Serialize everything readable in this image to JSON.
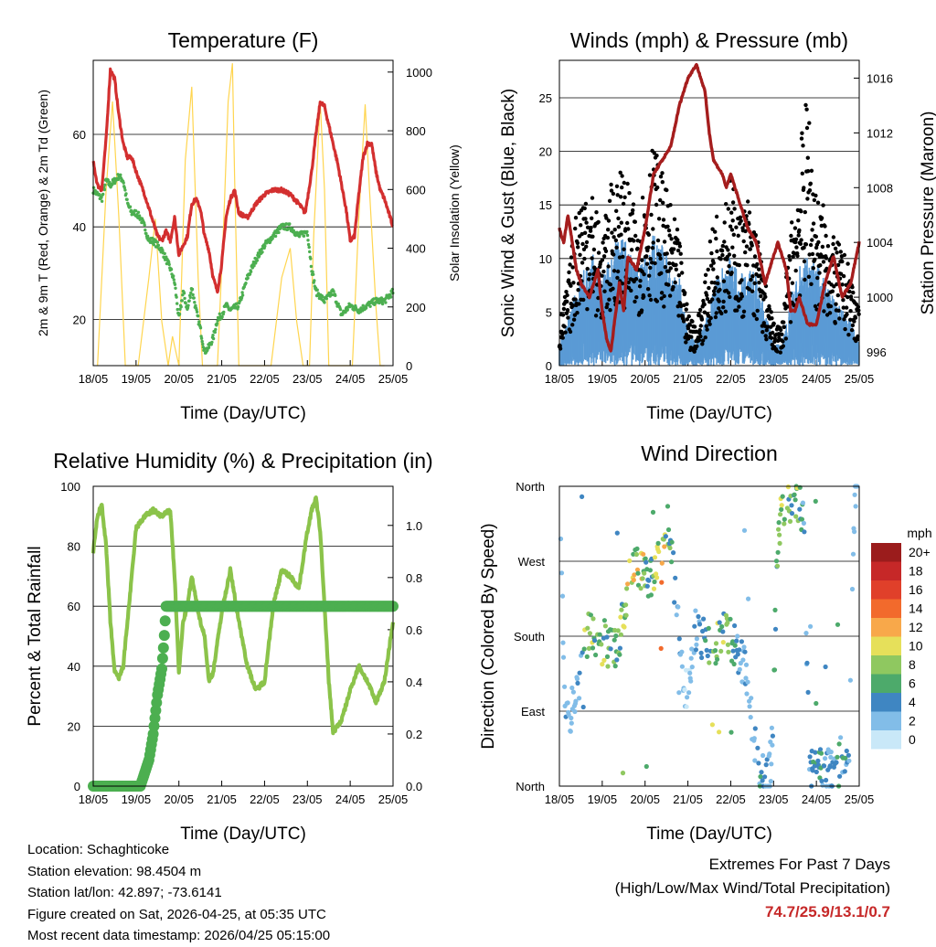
{
  "chart_data": [
    {
      "type": "line",
      "title": "Temperature (F)",
      "xlabel": "Time (Day/UTC)",
      "ylabel": "2m & 9m T (Red, Orange) & 2m Td (Green)",
      "y2label": "Solar Insolation (Yellow)",
      "x_ticks": [
        "18/05",
        "19/05",
        "20/05",
        "21/05",
        "22/05",
        "23/05",
        "24/05",
        "25/05"
      ],
      "xlim": [
        0,
        7
      ],
      "ylim": [
        10,
        76
      ],
      "y_ticks": [
        20,
        40,
        60
      ],
      "y2lim": [
        0,
        1040
      ],
      "y2_ticks": [
        0,
        200,
        400,
        600,
        800,
        1000
      ],
      "series": [
        {
          "name": "2m T",
          "color": "#d32f2f",
          "x": [
            0,
            0.1,
            0.2,
            0.3,
            0.4,
            0.5,
            0.6,
            0.7,
            0.8,
            0.9,
            1.0,
            1.2,
            1.4,
            1.5,
            1.6,
            1.7,
            1.8,
            1.9,
            2.0,
            2.1,
            2.2,
            2.3,
            2.4,
            2.5,
            2.6,
            2.7,
            2.8,
            2.9,
            3.0,
            3.1,
            3.2,
            3.3,
            3.4,
            3.6,
            3.8,
            4.0,
            4.2,
            4.4,
            4.6,
            4.8,
            4.95,
            5.1,
            5.2,
            5.3,
            5.4,
            5.5,
            5.6,
            5.7,
            5.8,
            5.9,
            6.0,
            6.1,
            6.2,
            6.3,
            6.4,
            6.5,
            6.6,
            6.7,
            6.8,
            6.9,
            7.0
          ],
          "values": [
            54,
            49,
            48,
            59,
            74,
            72,
            64,
            58,
            55,
            55,
            52,
            47,
            41,
            38,
            37,
            39,
            37,
            42,
            34,
            36,
            38,
            45,
            46,
            44,
            38,
            35,
            29,
            26,
            32,
            42,
            46,
            48,
            43,
            42,
            45,
            47,
            48,
            48,
            47,
            45,
            43,
            52,
            60,
            67,
            66,
            62,
            58,
            54,
            49,
            44,
            37,
            38,
            47,
            55,
            58,
            58,
            52,
            48,
            46,
            43,
            40
          ]
        },
        {
          "name": "2m Td",
          "color": "#4caf50",
          "x": [
            0,
            0.1,
            0.2,
            0.3,
            0.4,
            0.5,
            0.6,
            0.7,
            0.8,
            0.9,
            1.0,
            1.1,
            1.2,
            1.3,
            1.4,
            1.5,
            1.6,
            1.7,
            1.8,
            1.9,
            2.0,
            2.1,
            2.2,
            2.3,
            2.4,
            2.5,
            2.6,
            2.7,
            2.8,
            2.9,
            3.0,
            3.1,
            3.2,
            3.4,
            3.6,
            3.8,
            4.0,
            4.2,
            4.4,
            4.6,
            4.8,
            5.0,
            5.1,
            5.2,
            5.3,
            5.4,
            5.6,
            5.8,
            6.0,
            6.2,
            6.4,
            6.6,
            6.8,
            7.0
          ],
          "values": [
            48,
            47,
            46,
            50,
            49,
            50,
            51,
            50,
            45,
            43,
            43,
            42,
            40,
            37,
            37,
            36,
            35,
            33,
            31,
            28,
            20,
            26,
            22,
            27,
            22,
            18,
            13,
            14,
            16,
            20,
            21,
            23,
            22,
            23,
            29,
            33,
            36,
            38,
            40,
            40,
            38,
            39,
            31,
            26,
            25,
            24,
            26,
            21,
            23,
            22,
            23,
            24,
            24,
            26
          ]
        },
        {
          "name": "Solar Insolation",
          "color": "#ffd54f",
          "axis": "y2",
          "x": [
            0.1,
            0.3,
            0.45,
            0.6,
            0.75,
            1.05,
            1.3,
            1.45,
            1.6,
            1.75,
            1.85,
            2.0,
            2.15,
            2.3,
            2.45,
            2.55,
            2.7,
            2.9,
            3.05,
            3.15,
            3.25,
            3.3,
            3.4,
            3.55,
            4.15,
            4.4,
            4.6,
            4.75,
            4.9,
            5.05,
            5.15,
            5.3,
            5.4,
            5.5,
            5.7,
            5.9,
            6.05,
            6.2,
            6.35,
            6.45,
            6.6,
            6.7,
            6.8
          ],
          "values": [
            0,
            600,
            900,
            500,
            0,
            0,
            300,
            500,
            150,
            0,
            100,
            0,
            700,
            950,
            300,
            0,
            0,
            0,
            500,
            900,
            1030,
            650,
            0,
            0,
            0,
            300,
            400,
            150,
            0,
            0,
            450,
            900,
            600,
            0,
            0,
            0,
            0,
            500,
            890,
            600,
            200,
            0,
            0
          ]
        }
      ]
    },
    {
      "type": "scatter",
      "title": "Winds (mph) & Pressure (mb)",
      "xlabel": "Time (Day/UTC)",
      "ylabel": "Sonic Wind & Gust (Blue, Black)",
      "y2label": "Station Pressure (Maroon)",
      "x_ticks": [
        "18/05",
        "19/05",
        "20/05",
        "21/05",
        "22/05",
        "23/05",
        "24/05",
        "25/05"
      ],
      "xlim": [
        0,
        7
      ],
      "ylim": [
        0,
        28.5
      ],
      "y_ticks": [
        0,
        5,
        10,
        15,
        20,
        25
      ],
      "y2lim": [
        995.0,
        1017.3
      ],
      "y2_ticks": [
        996,
        1000,
        1004,
        1008,
        1012,
        1016
      ],
      "series": [
        {
          "name": "Wind (envelope)",
          "color": "#5b9bd5",
          "type": "area",
          "x": [
            0,
            0.2,
            0.4,
            0.6,
            0.8,
            1.0,
            1.2,
            1.4,
            1.6,
            1.8,
            2.0,
            2.2,
            2.4,
            2.6,
            2.8,
            3.0,
            3.2,
            3.4,
            3.6,
            3.8,
            4.0,
            4.2,
            4.4,
            4.6,
            4.8,
            5.0,
            5.2,
            5.4,
            5.6,
            5.8,
            6.0,
            6.2,
            6.4,
            6.6,
            6.8,
            7.0
          ],
          "values": [
            2,
            4,
            7,
            9,
            10,
            8,
            10,
            12,
            11,
            9,
            10,
            12,
            11,
            9,
            8,
            3,
            2,
            4,
            7,
            9,
            10,
            8,
            9,
            8,
            5,
            2,
            2,
            6,
            9,
            10,
            9,
            8,
            6,
            5,
            4,
            2
          ]
        },
        {
          "name": "Gust (envelope)",
          "color": "#000000",
          "type": "points",
          "x": [
            0,
            0.2,
            0.4,
            0.6,
            0.8,
            1.0,
            1.2,
            1.4,
            1.6,
            1.8,
            2.0,
            2.2,
            2.4,
            2.6,
            2.8,
            3.0,
            3.2,
            3.4,
            3.6,
            3.8,
            4.0,
            4.2,
            4.4,
            4.6,
            4.8,
            5.0,
            5.2,
            5.4,
            5.6,
            5.8,
            6.0,
            6.2,
            6.4,
            6.6,
            6.8,
            7.0
          ],
          "values": [
            4,
            8,
            15,
            18,
            16,
            12,
            17,
            19,
            17,
            14,
            18,
            21,
            18,
            15,
            12,
            5,
            4,
            8,
            14,
            16,
            18,
            14,
            16,
            13,
            8,
            4,
            4,
            13,
            20,
            26,
            16,
            15,
            12,
            11,
            9,
            5
          ]
        },
        {
          "name": "Station Pressure",
          "color": "#a51d1d",
          "axis": "y2",
          "x": [
            0,
            0.1,
            0.2,
            0.3,
            0.4,
            0.5,
            0.7,
            0.9,
            1.0,
            1.1,
            1.2,
            1.4,
            1.5,
            1.6,
            1.8,
            2.0,
            2.2,
            2.4,
            2.6,
            2.8,
            3.0,
            3.2,
            3.4,
            3.5,
            3.6,
            3.8,
            3.9,
            4.0,
            4.2,
            4.4,
            4.6,
            4.8,
            5.0,
            5.1,
            5.2,
            5.3,
            5.4,
            5.5,
            5.6,
            5.8,
            6.0,
            6.2,
            6.4,
            6.6,
            6.8,
            7.0
          ],
          "values": [
            1005,
            1004,
            1006,
            1004,
            1002,
            1001,
            1000,
            1002,
            999,
            997,
            996,
            1001,
            999,
            1003,
            1002,
            1005,
            1009,
            1010,
            1011,
            1014,
            1016,
            1017,
            1015,
            1012,
            1010,
            1009,
            1008,
            1009,
            1007,
            1005,
            1004,
            1001,
            1003,
            1004,
            1003,
            1002,
            999,
            999,
            1000,
            998,
            998,
            1001,
            1003,
            1000,
            1001,
            1004
          ]
        }
      ]
    },
    {
      "type": "line",
      "title": "Relative Humidity (%) & Precipitation (in)",
      "xlabel": "Time (Day/UTC)",
      "ylabel": "Percent & Total Rainfall",
      "x_ticks": [
        "18/05",
        "19/05",
        "20/05",
        "21/05",
        "22/05",
        "23/05",
        "24/05",
        "25/05"
      ],
      "xlim": [
        0,
        7
      ],
      "ylim": [
        0,
        100
      ],
      "y_ticks": [
        0,
        20,
        40,
        60,
        80,
        100
      ],
      "y2lim": [
        0,
        1.15
      ],
      "y2_ticks": [
        "0.0",
        "0.2",
        "0.4",
        "0.6",
        "0.8",
        "1.0"
      ],
      "series": [
        {
          "name": "Relative Humidity",
          "color": "#8bc34a",
          "x": [
            0,
            0.1,
            0.2,
            0.3,
            0.4,
            0.5,
            0.6,
            0.7,
            0.8,
            0.9,
            1.0,
            1.2,
            1.4,
            1.6,
            1.8,
            1.9,
            2.0,
            2.1,
            2.2,
            2.3,
            2.4,
            2.5,
            2.6,
            2.7,
            2.8,
            3.0,
            3.2,
            3.4,
            3.6,
            3.8,
            4.0,
            4.2,
            4.4,
            4.6,
            4.8,
            5.0,
            5.1,
            5.2,
            5.3,
            5.4,
            5.5,
            5.6,
            5.8,
            6.0,
            6.2,
            6.4,
            6.6,
            6.8,
            7.0
          ],
          "values": [
            78,
            90,
            94,
            80,
            55,
            38,
            36,
            40,
            55,
            70,
            86,
            90,
            92,
            90,
            92,
            70,
            38,
            55,
            60,
            70,
            62,
            55,
            50,
            35,
            38,
            58,
            72,
            55,
            40,
            32,
            35,
            60,
            72,
            70,
            66,
            85,
            92,
            96,
            85,
            60,
            35,
            18,
            22,
            32,
            40,
            35,
            28,
            35,
            55
          ]
        },
        {
          "name": "Total Precipitation",
          "color": "#4caf50",
          "axis": "y2",
          "x": [
            0,
            0.5,
            1.0,
            1.1,
            1.2,
            1.3,
            1.4,
            1.5,
            1.6,
            1.65,
            1.7,
            2.0,
            3.0,
            4.0,
            5.0,
            6.0,
            7.0
          ],
          "values": [
            0,
            0,
            0,
            0,
            0.05,
            0.1,
            0.2,
            0.35,
            0.45,
            0.55,
            0.69,
            0.69,
            0.69,
            0.69,
            0.69,
            0.69,
            0.69
          ]
        }
      ]
    },
    {
      "type": "scatter",
      "title": "Wind Direction",
      "xlabel": "Time (Day/UTC)",
      "ylabel": "Direction (Colored By Speed)",
      "x_ticks": [
        "18/05",
        "19/05",
        "20/05",
        "21/05",
        "22/05",
        "23/05",
        "24/05",
        "25/05"
      ],
      "xlim": [
        0,
        7
      ],
      "ylim": [
        0,
        360
      ],
      "y_tick_labels": [
        "North",
        "East",
        "South",
        "West",
        "North"
      ],
      "y_ticks": [
        0,
        90,
        180,
        270,
        360
      ],
      "legend_title": "mph",
      "legend_labels": [
        "20+",
        "18",
        "16",
        "14",
        "12",
        "10",
        "8",
        "6",
        "4",
        "2",
        "0"
      ],
      "legend_colors": [
        "#9b1c1c",
        "#c62828",
        "#e0402a",
        "#f26a2c",
        "#f8a84a",
        "#e6e05a",
        "#8fc860",
        "#4daa6b",
        "#3f86c2",
        "#82bde8",
        "#c9e8f8"
      ],
      "series": [
        {
          "name": "direction (deg)",
          "x": [
            0.0,
            0.15,
            0.3,
            0.45,
            0.6,
            0.75,
            0.9,
            1.05,
            1.2,
            1.35,
            1.5,
            1.65,
            1.8,
            1.95,
            2.1,
            2.25,
            2.4,
            2.55,
            2.7,
            2.85,
            3.0,
            3.15,
            3.3,
            3.45,
            3.6,
            3.75,
            3.9,
            4.05,
            4.2,
            4.35,
            4.5,
            4.65,
            4.8,
            4.95,
            5.1,
            5.25,
            5.4,
            5.55,
            5.7,
            5.85,
            6.0,
            6.15,
            6.3,
            6.45,
            6.6,
            6.75,
            6.9
          ],
          "values": [
            350,
            70,
            95,
            130,
            175,
            190,
            165,
            175,
            160,
            175,
            200,
            265,
            270,
            260,
            240,
            265,
            270,
            320,
            230,
            150,
            100,
            190,
            180,
            170,
            165,
            185,
            180,
            175,
            160,
            140,
            80,
            20,
            5,
            30,
            300,
            340,
            330,
            350,
            320,
            20,
            15,
            25,
            20,
            15,
            30,
            25,
            350
          ],
          "speeds": [
            1,
            3,
            2,
            3,
            8,
            10,
            7,
            9,
            6,
            8,
            9,
            12,
            11,
            10,
            5,
            11,
            13,
            7,
            5,
            2,
            1,
            4,
            5,
            6,
            8,
            10,
            8,
            7,
            4,
            3,
            2,
            5,
            4,
            2,
            9,
            10,
            8,
            9,
            4,
            3,
            6,
            5,
            4,
            6,
            5,
            4,
            2
          ]
        }
      ]
    }
  ],
  "footer": {
    "location": "Location: Schaghticoke",
    "elevation": "Station elevation: 98.4504 m",
    "latlon": "Station lat/lon: 42.897; -73.6141",
    "created": "Figure created on Sat, 2026-04-25, at 05:35 UTC",
    "recent": "Most recent data timestamp: 2026/04/25 05:15:00",
    "extremes_title": "Extremes For Past 7 Days",
    "extremes_sub": "(High/Low/Max Wind/Total Precipitation)",
    "extremes_values": "74.7/25.9/13.1/0.7"
  }
}
